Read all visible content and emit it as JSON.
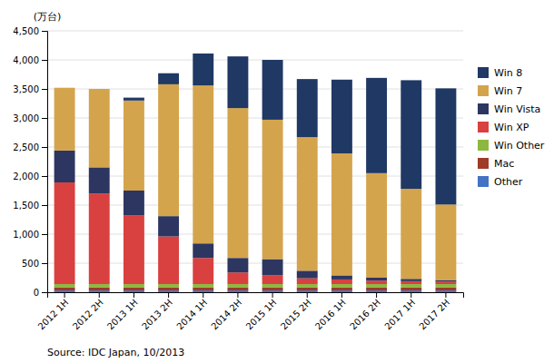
{
  "chart_data": {
    "type": "bar",
    "stacked": true,
    "grid": true,
    "legend": "right",
    "ylabel": "(万台)",
    "annotations": [
      "Source: IDC Japan, 10/2013"
    ],
    "categories": [
      "2012 1H",
      "2012 2H",
      "2013 1H",
      "2013 2H",
      "2014 1H",
      "2014 2H",
      "2015 1H",
      "2015 2H",
      "2016 1H",
      "2016 2H",
      "2017 1H",
      "2017 2H"
    ],
    "series": [
      {
        "name": "Other",
        "color": "#4472C4",
        "values": [
          30,
          30,
          30,
          30,
          30,
          30,
          30,
          30,
          30,
          30,
          30,
          30
        ]
      },
      {
        "name": "Mac",
        "color": "#9E3A26",
        "values": [
          50,
          50,
          50,
          50,
          50,
          50,
          50,
          50,
          50,
          50,
          50,
          50
        ]
      },
      {
        "name": "Win Other",
        "color": "#8DB840",
        "values": [
          60,
          60,
          60,
          60,
          60,
          60,
          60,
          60,
          60,
          60,
          60,
          60
        ]
      },
      {
        "name": "Win XP",
        "color": "#D94040",
        "values": [
          1750,
          1560,
          1180,
          820,
          450,
          200,
          150,
          100,
          80,
          60,
          50,
          40
        ]
      },
      {
        "name": "Win Vista",
        "color": "#2D3660",
        "values": [
          550,
          450,
          430,
          350,
          250,
          250,
          280,
          130,
          70,
          50,
          40,
          30
        ]
      },
      {
        "name": "Win 7",
        "color": "#D4A44C",
        "values": [
          1080,
          1350,
          1550,
          2270,
          2720,
          2580,
          2400,
          2300,
          2100,
          1800,
          1550,
          1300
        ]
      },
      {
        "name": "Win 8",
        "color": "#1F3864",
        "values": [
          0,
          0,
          50,
          190,
          550,
          890,
          1030,
          1000,
          1270,
          1640,
          1870,
          2000
        ]
      }
    ],
    "ylim": [
      0,
      4500
    ],
    "yticks": [
      0,
      500,
      {
        "value": 1000,
        "label": "1,000"
      },
      {
        "value": 1500,
        "label": "1,500"
      },
      {
        "value": 2000,
        "label": "2,000"
      },
      {
        "value": 2500,
        "label": "2,500"
      },
      {
        "value": 3000,
        "label": "3,000"
      },
      {
        "value": 3500,
        "label": "3,500"
      },
      {
        "value": 4000,
        "label": "4,000"
      },
      {
        "value": 4500,
        "label": "4,500"
      }
    ]
  }
}
